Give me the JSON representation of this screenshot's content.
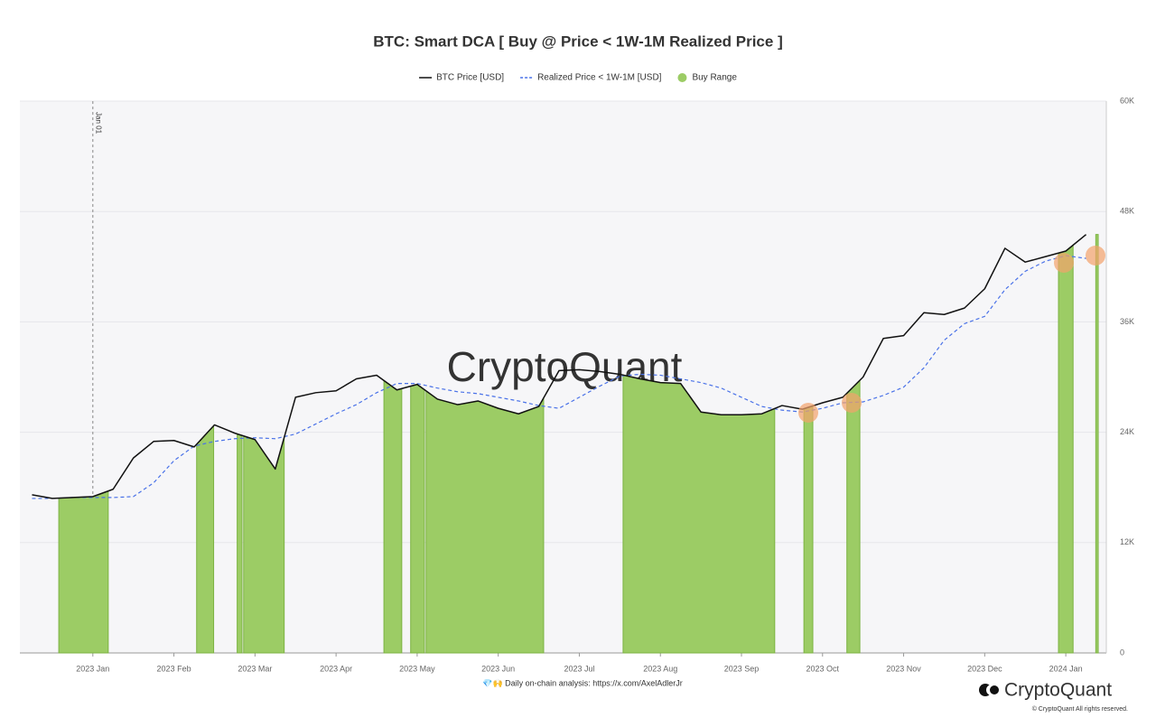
{
  "chart_data": {
    "type": "line",
    "title": "BTC: Smart DCA [ Buy @ Price < 1W-1M Realized Price ]",
    "x": [
      -0.75,
      -0.5,
      -0.25,
      0,
      0.25,
      0.5,
      0.75,
      1,
      1.25,
      1.5,
      1.75,
      2,
      2.25,
      2.5,
      2.75,
      3,
      3.25,
      3.5,
      3.75,
      4,
      4.25,
      4.5,
      4.75,
      5,
      5.25,
      5.5,
      5.75,
      6,
      6.25,
      6.5,
      6.75,
      7,
      7.25,
      7.5,
      7.75,
      8,
      8.25,
      8.5,
      8.75,
      9,
      9.25,
      9.5,
      9.75,
      10,
      10.25,
      10.5,
      10.75,
      11,
      11.25,
      11.5,
      11.75,
      12,
      12.25
    ],
    "series": [
      {
        "name": "BTC Price [USD]",
        "color": "#111111",
        "dash": false,
        "values": [
          17200,
          16800,
          16900,
          17000,
          17800,
          21200,
          23000,
          23100,
          22400,
          24800,
          23900,
          23200,
          20000,
          27800,
          28300,
          28500,
          29800,
          30200,
          28600,
          29200,
          27600,
          27000,
          27400,
          26600,
          26000,
          26800,
          30700,
          30800,
          30600,
          30300,
          29800,
          29400,
          29300,
          26200,
          25900,
          25900,
          26000,
          26900,
          26500,
          27200,
          27800,
          30000,
          34200,
          34500,
          37000,
          36800,
          37500,
          39600,
          44000,
          42500,
          43100,
          43700,
          45500
        ]
      },
      {
        "name": "Realized Price < 1W-1M [USD]",
        "color": "#4a72e8",
        "dash": true,
        "values": [
          16800,
          16800,
          16900,
          16900,
          16900,
          17000,
          18500,
          20900,
          22500,
          23000,
          23300,
          23400,
          23300,
          23800,
          24900,
          26000,
          27000,
          28300,
          29300,
          29300,
          28800,
          28400,
          28200,
          27800,
          27400,
          26900,
          26600,
          27800,
          29000,
          30100,
          30300,
          30200,
          29800,
          29400,
          28800,
          27800,
          26800,
          26400,
          26200,
          26600,
          27200,
          27300,
          28000,
          28900,
          31000,
          34000,
          35800,
          36600,
          39500,
          41500,
          42600,
          43200,
          42900
        ]
      }
    ],
    "buy_range": {
      "name": "Buy Range",
      "color": "#9ccc65",
      "stroke": "#7cb342",
      "intervals": [
        [
          -0.42,
          0.19
        ],
        [
          1.28,
          1.49
        ],
        [
          1.78,
          1.84
        ],
        [
          1.86,
          2.36
        ],
        [
          3.59,
          3.81
        ],
        [
          3.92,
          4.09
        ],
        [
          4.11,
          5.56
        ],
        [
          6.54,
          8.41
        ],
        [
          8.77,
          8.88
        ],
        [
          9.3,
          9.46
        ],
        [
          11.91,
          12.09
        ],
        [
          12.37,
          12.4
        ]
      ]
    },
    "xlim": [
      -0.9,
      12.5
    ],
    "xticks": [
      {
        "value": 0,
        "label": "2023 Jan"
      },
      {
        "value": 1,
        "label": "2023 Feb"
      },
      {
        "value": 2,
        "label": "2023 Mar"
      },
      {
        "value": 3,
        "label": "2023 Apr"
      },
      {
        "value": 4,
        "label": "2023 May"
      },
      {
        "value": 5,
        "label": "2023 Jun"
      },
      {
        "value": 6,
        "label": "2023 Jul"
      },
      {
        "value": 7,
        "label": "2023 Aug"
      },
      {
        "value": 8,
        "label": "2023 Sep"
      },
      {
        "value": 9,
        "label": "2023 Oct"
      },
      {
        "value": 10,
        "label": "2023 Nov"
      },
      {
        "value": 11,
        "label": "2023 Dec"
      },
      {
        "value": 12,
        "label": "2024 Jan"
      }
    ],
    "ylim": [
      0,
      60000
    ],
    "yticks": [
      0,
      {
        "value": 12000,
        "label": "12K"
      },
      {
        "value": 24000,
        "label": "24K"
      },
      {
        "value": 36000,
        "label": "36K"
      },
      {
        "value": 48000,
        "label": "48K"
      },
      {
        "value": 60000,
        "label": "60K"
      }
    ],
    "y_axis_side": "right",
    "grid": true,
    "annotations": [
      {
        "x": 0,
        "label": "Jan 01"
      }
    ],
    "watermark": "CryptoQuant"
  },
  "footer": {
    "note": "💎🙌 Daily on-chain analysis: https://x.com/AxelAdlerJr",
    "brand": "CryptoQuant",
    "copyright": "© CryptoQuant All rights reserved."
  }
}
